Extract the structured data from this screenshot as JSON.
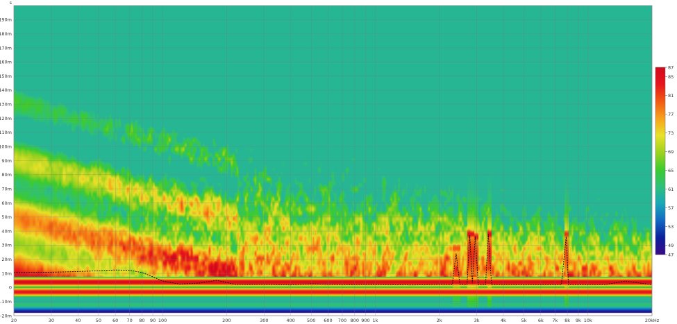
{
  "chart_data": {
    "type": "heatmap",
    "title": "",
    "xlabel": "",
    "ylabel": "",
    "x_scale": "log",
    "x_range_hz": [
      20,
      20000
    ],
    "y_range_ms": [
      -20,
      200
    ],
    "y_unit": "s",
    "x_tick_labels": [
      {
        "hz": 20,
        "label": "20"
      },
      {
        "hz": 30,
        "label": "30"
      },
      {
        "hz": 40,
        "label": "40"
      },
      {
        "hz": 50,
        "label": "50"
      },
      {
        "hz": 60,
        "label": "60"
      },
      {
        "hz": 70,
        "label": "70"
      },
      {
        "hz": 80,
        "label": "80"
      },
      {
        "hz": 90,
        "label": "90"
      },
      {
        "hz": 100,
        "label": "100"
      },
      {
        "hz": 200,
        "label": "200"
      },
      {
        "hz": 300,
        "label": "300"
      },
      {
        "hz": 400,
        "label": "400"
      },
      {
        "hz": 500,
        "label": "500"
      },
      {
        "hz": 600,
        "label": "600"
      },
      {
        "hz": 700,
        "label": "700"
      },
      {
        "hz": 800,
        "label": "800"
      },
      {
        "hz": 900,
        "label": "900"
      },
      {
        "hz": 1000,
        "label": "1k"
      },
      {
        "hz": 2000,
        "label": "2k"
      },
      {
        "hz": 3000,
        "label": "3k"
      },
      {
        "hz": 4000,
        "label": "4k"
      },
      {
        "hz": 5000,
        "label": "5k"
      },
      {
        "hz": 6000,
        "label": "6k"
      },
      {
        "hz": 7000,
        "label": "7k"
      },
      {
        "hz": 8000,
        "label": "8k"
      },
      {
        "hz": 9000,
        "label": "9k"
      },
      {
        "hz": 10000,
        "label": "10k"
      },
      {
        "hz": 20000,
        "label": "20kHz"
      }
    ],
    "y_tick_labels": [
      {
        "ms": -20,
        "label": "-20m"
      },
      {
        "ms": -10,
        "label": "-10m"
      },
      {
        "ms": 0,
        "label": "0"
      },
      {
        "ms": 10,
        "label": "10m"
      },
      {
        "ms": 20,
        "label": "20m"
      },
      {
        "ms": 30,
        "label": "30m"
      },
      {
        "ms": 40,
        "label": "40m"
      },
      {
        "ms": 50,
        "label": "50m"
      },
      {
        "ms": 60,
        "label": "60m"
      },
      {
        "ms": 70,
        "label": "70m"
      },
      {
        "ms": 80,
        "label": "80m"
      },
      {
        "ms": 90,
        "label": "90m"
      },
      {
        "ms": 100,
        "label": "100m"
      },
      {
        "ms": 110,
        "label": "110m"
      },
      {
        "ms": 120,
        "label": "120m"
      },
      {
        "ms": 130,
        "label": "130m"
      },
      {
        "ms": 140,
        "label": "140m"
      },
      {
        "ms": 150,
        "label": "150m"
      },
      {
        "ms": 160,
        "label": "160m"
      },
      {
        "ms": 170,
        "label": "170m"
      },
      {
        "ms": 180,
        "label": "180m"
      },
      {
        "ms": 190,
        "label": "190m"
      }
    ],
    "colorbar": {
      "range_db": [
        47,
        87
      ],
      "tick_values": [
        87,
        85,
        81,
        77,
        73,
        69,
        65,
        61,
        57,
        53,
        49,
        47
      ],
      "colors": [
        "#3b0a87",
        "#0b1f9c",
        "#1268c4",
        "#19a8b8",
        "#2fc07a",
        "#3ecb2e",
        "#9ed21f",
        "#e8e22a",
        "#f7a21c",
        "#f25a12",
        "#e5161d",
        "#d00a1c"
      ]
    },
    "group_delay_ms": [
      {
        "hz": 20,
        "ms": 10.5
      },
      {
        "hz": 30,
        "ms": 10.8
      },
      {
        "hz": 40,
        "ms": 11.3
      },
      {
        "hz": 50,
        "ms": 11.9
      },
      {
        "hz": 60,
        "ms": 12.4
      },
      {
        "hz": 70,
        "ms": 12.2
      },
      {
        "hz": 80,
        "ms": 10.6
      },
      {
        "hz": 90,
        "ms": 7.6
      },
      {
        "hz": 100,
        "ms": 4.6
      },
      {
        "hz": 120,
        "ms": 2.4
      },
      {
        "hz": 150,
        "ms": 3.2
      },
      {
        "hz": 180,
        "ms": 5.1
      },
      {
        "hz": 220,
        "ms": 2.1
      },
      {
        "hz": 300,
        "ms": 2.2
      },
      {
        "hz": 400,
        "ms": 1.8
      },
      {
        "hz": 500,
        "ms": 2.6
      },
      {
        "hz": 700,
        "ms": 2.0
      },
      {
        "hz": 1000,
        "ms": 2.1
      },
      {
        "hz": 1500,
        "ms": 1.8
      },
      {
        "hz": 2000,
        "ms": 2.2
      },
      {
        "hz": 2300,
        "ms": 2.0
      },
      {
        "hz": 2400,
        "ms": 24.0
      },
      {
        "hz": 2500,
        "ms": 2.2
      },
      {
        "hz": 2700,
        "ms": 2.0
      },
      {
        "hz": 2780,
        "ms": 37.0
      },
      {
        "hz": 2860,
        "ms": 3.0
      },
      {
        "hz": 2950,
        "ms": 36.0
      },
      {
        "hz": 3050,
        "ms": 2.0
      },
      {
        "hz": 3300,
        "ms": 2.0
      },
      {
        "hz": 3400,
        "ms": 38.0
      },
      {
        "hz": 3520,
        "ms": 2.1
      },
      {
        "hz": 5000,
        "ms": 2.0
      },
      {
        "hz": 7500,
        "ms": 2.0
      },
      {
        "hz": 7900,
        "ms": 36.0
      },
      {
        "hz": 8100,
        "ms": 2.0
      },
      {
        "hz": 12000,
        "ms": 2.0
      },
      {
        "hz": 15000,
        "ms": 4.5
      },
      {
        "hz": 20000,
        "ms": 2.0
      }
    ],
    "ridges": [
      {
        "hz_from": 20,
        "hz_to": 20000,
        "ms": 4,
        "level_db": 86
      },
      {
        "hz_from": 20,
        "hz_to": 20000,
        "ms": -3,
        "level_db": 84
      },
      {
        "hz_from": 20,
        "hz_to": 20000,
        "ms": -12,
        "level_db": 62
      },
      {
        "hz_from": 2300,
        "hz_to": 2500,
        "ms": 28,
        "level_db": 80
      },
      {
        "hz_from": 2700,
        "hz_to": 2900,
        "ms": 38,
        "level_db": 84
      },
      {
        "hz_from": 2900,
        "hz_to": 3050,
        "ms": 36,
        "level_db": 83
      },
      {
        "hz_from": 3350,
        "hz_to": 3500,
        "ms": 38,
        "level_db": 84
      },
      {
        "hz_from": 7700,
        "hz_to": 8100,
        "ms": 38,
        "level_db": 82
      }
    ]
  }
}
